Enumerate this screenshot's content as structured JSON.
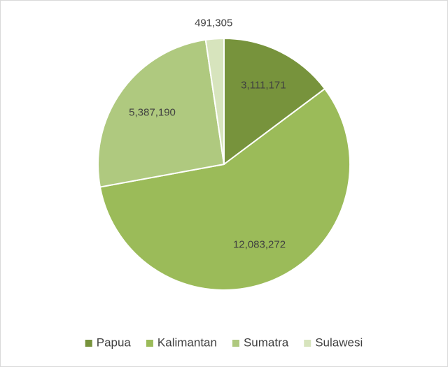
{
  "chart_data": {
    "type": "pie",
    "categories": [
      "Papua",
      "Kalimantan",
      "Sumatra",
      "Sulawesi"
    ],
    "values": [
      3111171,
      12083272,
      5387190,
      491305
    ],
    "value_labels": [
      "3,111,171",
      "12,083,272",
      "5,387,190",
      "491,305"
    ],
    "colors": [
      "#77933c",
      "#9bbb59",
      "#afc97f",
      "#d7e4bd"
    ],
    "legend": "bottom"
  }
}
